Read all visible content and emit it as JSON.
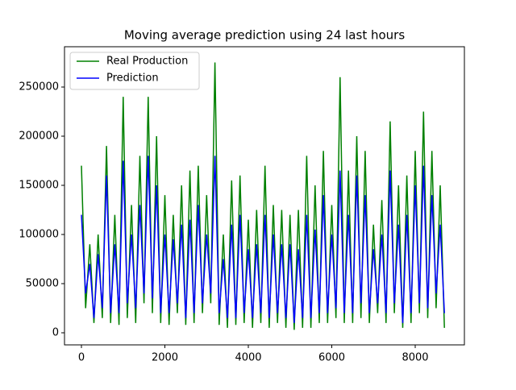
{
  "chart_data": {
    "type": "line",
    "title": "Moving average prediction using 24 last hours",
    "x": [
      0,
      100,
      200,
      300,
      400,
      500,
      600,
      700,
      800,
      900,
      1000,
      1100,
      1200,
      1300,
      1400,
      1500,
      1600,
      1700,
      1800,
      1900,
      2000,
      2100,
      2200,
      2300,
      2400,
      2500,
      2600,
      2700,
      2800,
      2900,
      3000,
      3100,
      3200,
      3300,
      3400,
      3500,
      3600,
      3700,
      3800,
      3900,
      4000,
      4100,
      4200,
      4300,
      4400,
      4500,
      4600,
      4700,
      4800,
      4900,
      5000,
      5100,
      5200,
      5300,
      5400,
      5500,
      5600,
      5700,
      5800,
      5900,
      6000,
      6100,
      6200,
      6300,
      6400,
      6500,
      6600,
      6700,
      6800,
      6900,
      7000,
      7100,
      7200,
      7300,
      7400,
      7500,
      7600,
      7700,
      7800,
      7900,
      8000,
      8100,
      8200,
      8300,
      8400,
      8500,
      8600,
      8700
    ],
    "series": [
      {
        "name": "Real Production",
        "color": "#008000",
        "values": [
          170000,
          25000,
          90000,
          10000,
          100000,
          15000,
          190000,
          10000,
          120000,
          8000,
          240000,
          15000,
          130000,
          10000,
          180000,
          30000,
          240000,
          20000,
          200000,
          10000,
          140000,
          8000,
          120000,
          20000,
          150000,
          8000,
          165000,
          10000,
          170000,
          20000,
          140000,
          30000,
          275000,
          8000,
          100000,
          5000,
          155000,
          8000,
          160000,
          10000,
          115000,
          5000,
          125000,
          10000,
          170000,
          5000,
          130000,
          10000,
          125000,
          5000,
          120000,
          3000,
          125000,
          5000,
          180000,
          5000,
          150000,
          10000,
          185000,
          10000,
          130000,
          15000,
          260000,
          10000,
          165000,
          10000,
          200000,
          15000,
          185000,
          10000,
          110000,
          20000,
          135000,
          10000,
          215000,
          20000,
          150000,
          5000,
          160000,
          10000,
          185000,
          20000,
          225000,
          15000,
          185000,
          25000,
          150000,
          5000
        ]
      },
      {
        "name": "Prediction",
        "color": "#0000ff",
        "values": [
          120000,
          40000,
          70000,
          15000,
          80000,
          25000,
          160000,
          20000,
          90000,
          20000,
          175000,
          30000,
          100000,
          25000,
          130000,
          40000,
          180000,
          35000,
          150000,
          20000,
          100000,
          20000,
          95000,
          30000,
          110000,
          15000,
          115000,
          20000,
          130000,
          30000,
          100000,
          40000,
          180000,
          20000,
          75000,
          15000,
          110000,
          15000,
          120000,
          20000,
          85000,
          15000,
          90000,
          20000,
          120000,
          15000,
          100000,
          20000,
          90000,
          15000,
          90000,
          10000,
          85000,
          15000,
          120000,
          15000,
          105000,
          20000,
          140000,
          20000,
          100000,
          25000,
          165000,
          20000,
          120000,
          20000,
          160000,
          30000,
          140000,
          20000,
          85000,
          30000,
          100000,
          20000,
          165000,
          30000,
          110000,
          10000,
          120000,
          20000,
          150000,
          30000,
          170000,
          25000,
          140000,
          40000,
          110000,
          20000
        ]
      }
    ],
    "xlim": [
      -406,
      9179
    ],
    "ylim": [
      -12300,
      291000
    ],
    "xticks": [
      0,
      2000,
      4000,
      6000,
      8000
    ],
    "yticks": [
      0,
      50000,
      100000,
      150000,
      200000,
      250000
    ],
    "legend": "upper left"
  }
}
